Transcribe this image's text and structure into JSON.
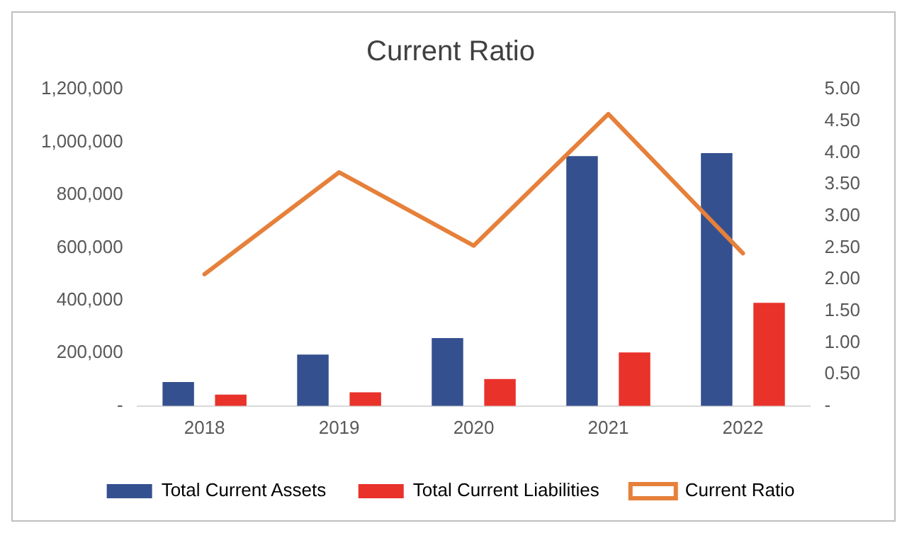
{
  "chart_data": {
    "type": "bar",
    "title": "Current Ratio",
    "categories": [
      "2018",
      "2019",
      "2020",
      "2021",
      "2022"
    ],
    "series": [
      {
        "name": "Total Current Assets",
        "color": "#35508f",
        "values": [
          91000,
          195000,
          257000,
          947000,
          958000
        ]
      },
      {
        "name": "Total Current Liabilities",
        "color": "#e8322a",
        "values": [
          43000,
          52000,
          102000,
          203000,
          391000
        ]
      },
      {
        "name": "Current Ratio",
        "type": "line",
        "axis": "y2",
        "color": "#e6803a",
        "values": [
          2.08,
          3.69,
          2.53,
          4.61,
          2.41
        ]
      }
    ],
    "ylim": [
      0,
      1200000
    ],
    "yticks": [
      {
        "value": 0,
        "label": "-"
      },
      {
        "value": 200000,
        "label": "200,000"
      },
      {
        "value": 400000,
        "label": "400,000"
      },
      {
        "value": 600000,
        "label": "600,000"
      },
      {
        "value": 800000,
        "label": "800,000"
      },
      {
        "value": 1000000,
        "label": "1,000,000"
      },
      {
        "value": 1200000,
        "label": "1,200,000"
      }
    ],
    "y2lim": [
      0,
      5
    ],
    "y2ticks": [
      {
        "value": 0,
        "label": "-"
      },
      {
        "value": 0.5,
        "label": "0.50"
      },
      {
        "value": 1,
        "label": "1.00"
      },
      {
        "value": 1.5,
        "label": "1.50"
      },
      {
        "value": 2,
        "label": "2.00"
      },
      {
        "value": 2.5,
        "label": "2.50"
      },
      {
        "value": 3,
        "label": "3.00"
      },
      {
        "value": 3.5,
        "label": "3.50"
      },
      {
        "value": 4,
        "label": "4.00"
      },
      {
        "value": 4.5,
        "label": "4.50"
      },
      {
        "value": 5,
        "label": "5.00"
      }
    ],
    "legend": "bottom",
    "grid": false,
    "marker": "none"
  }
}
